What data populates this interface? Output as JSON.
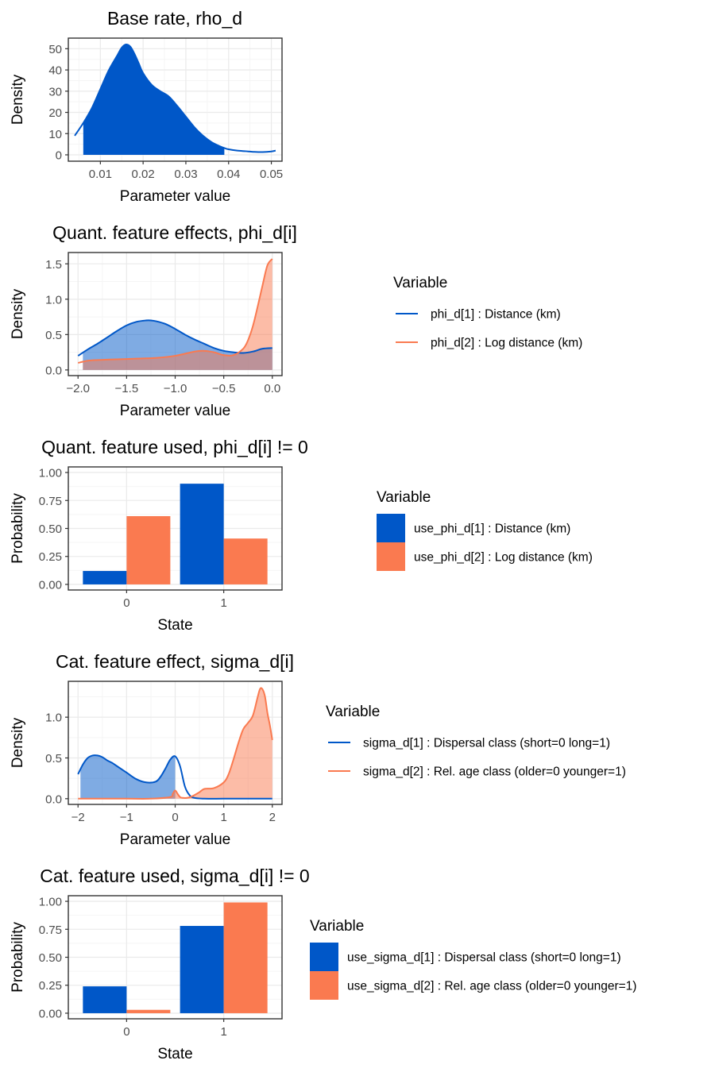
{
  "colors": {
    "series1": "#0057c8",
    "series2": "#fa7a50",
    "grid_major": "#ebebeb",
    "grid_minor": "#f5f5f5",
    "axis": "#333333",
    "text": "#000000",
    "tick_text": "#4d4d4d"
  },
  "chart_data": [
    {
      "id": "rho",
      "type": "area",
      "title": "Base rate, rho_d",
      "xlabel": "Parameter value",
      "ylabel": "Density",
      "xlim": [
        0.0025,
        0.0525
      ],
      "ylim": [
        -3,
        55
      ],
      "xticks": [
        0.01,
        0.02,
        0.03,
        0.04,
        0.05
      ],
      "xtick_labels": [
        "0.01",
        "0.02",
        "0.03",
        "0.04",
        "0.05"
      ],
      "yticks": [
        0,
        10,
        20,
        30,
        40,
        50
      ],
      "ytick_labels": [
        "0",
        "10",
        "20",
        "30",
        "40",
        "50"
      ],
      "series": [
        {
          "fill_range": [
            0.006,
            0.039
          ],
          "fill_opacity": 1,
          "x": [
            0.004,
            0.006,
            0.008,
            0.01,
            0.012,
            0.014,
            0.015,
            0.016,
            0.017,
            0.018,
            0.019,
            0.02,
            0.022,
            0.024,
            0.026,
            0.028,
            0.03,
            0.032,
            0.034,
            0.036,
            0.038,
            0.039,
            0.04,
            0.042,
            0.044,
            0.046,
            0.048,
            0.05,
            0.051
          ],
          "y": [
            9,
            15,
            22,
            31,
            40,
            47,
            50.5,
            52,
            51,
            47.5,
            43,
            38.5,
            33,
            30,
            27.5,
            23,
            18,
            13,
            9,
            6,
            4,
            3.2,
            2.6,
            2,
            1.7,
            1.4,
            1.3,
            1.6,
            2
          ]
        }
      ]
    },
    {
      "id": "phi",
      "type": "area",
      "title": "Quant. feature effects, phi_d[i]",
      "xlabel": "Parameter value",
      "ylabel": "Density",
      "xlim": [
        -2.1,
        0.1
      ],
      "ylim": [
        -0.08,
        1.66
      ],
      "xticks": [
        -2,
        -1.5,
        -1,
        -0.5,
        0
      ],
      "xtick_labels": [
        "−2.0",
        "−1.5",
        "−1.0",
        "−0.5",
        "0.0"
      ],
      "yticks": [
        0,
        0.5,
        1,
        1.5
      ],
      "ytick_labels": [
        "0.0",
        "0.5",
        "1.0",
        "1.5"
      ],
      "legend_title": "Variable",
      "legend_type": "line",
      "series": [
        {
          "name": "phi_d[1] : Distance (km)",
          "fill_range": [
            -1.95,
            0
          ],
          "fill_opacity": 0.5,
          "x": [
            -2,
            -1.9,
            -1.8,
            -1.7,
            -1.6,
            -1.5,
            -1.4,
            -1.3,
            -1.25,
            -1.2,
            -1.1,
            -1,
            -0.9,
            -0.8,
            -0.7,
            -0.6,
            -0.5,
            -0.4,
            -0.3,
            -0.2,
            -0.1,
            0
          ],
          "y": [
            0.2,
            0.29,
            0.37,
            0.46,
            0.55,
            0.63,
            0.68,
            0.7,
            0.7,
            0.69,
            0.65,
            0.58,
            0.5,
            0.43,
            0.37,
            0.31,
            0.27,
            0.25,
            0.24,
            0.26,
            0.3,
            0.31
          ]
        },
        {
          "name": "phi_d[2] : Log distance (km)",
          "fill_range": [
            -1.95,
            0
          ],
          "fill_opacity": 0.5,
          "x": [
            -2,
            -1.9,
            -1.8,
            -1.6,
            -1.4,
            -1.2,
            -1,
            -0.8,
            -0.7,
            -0.6,
            -0.5,
            -0.4,
            -0.3,
            -0.25,
            -0.2,
            -0.15,
            -0.1,
            -0.05,
            0
          ],
          "y": [
            0.1,
            0.13,
            0.14,
            0.15,
            0.16,
            0.17,
            0.2,
            0.26,
            0.27,
            0.25,
            0.21,
            0.21,
            0.3,
            0.42,
            0.62,
            0.9,
            1.2,
            1.48,
            1.57
          ]
        }
      ]
    },
    {
      "id": "usephi",
      "type": "bar",
      "title": "Quant. feature used, phi_d[i] != 0",
      "xlabel": "State",
      "ylabel": "Probability",
      "categories": [
        "0",
        "1"
      ],
      "ylim": [
        -0.05,
        1.05
      ],
      "yticks": [
        0,
        0.25,
        0.5,
        0.75,
        1
      ],
      "ytick_labels": [
        "0.00",
        "0.25",
        "0.50",
        "0.75",
        "1.00"
      ],
      "legend_title": "Variable",
      "legend_type": "box",
      "series": [
        {
          "name": "use_phi_d[1] : Distance (km)",
          "values": [
            0.12,
            0.9
          ]
        },
        {
          "name": "use_phi_d[2] : Log distance (km)",
          "values": [
            0.61,
            0.41
          ]
        }
      ]
    },
    {
      "id": "sigma",
      "type": "area",
      "title": "Cat. feature effect, sigma_d[i]",
      "xlabel": "Parameter value",
      "ylabel": "Density",
      "xlim": [
        -2.2,
        2.2
      ],
      "ylim": [
        -0.07,
        1.44
      ],
      "xticks": [
        -2,
        -1,
        0,
        1,
        2
      ],
      "xtick_labels": [
        "−2",
        "−1",
        "0",
        "1",
        "2"
      ],
      "yticks": [
        0,
        0.5,
        1
      ],
      "ytick_labels": [
        "0.0",
        "0.5",
        "1.0"
      ],
      "legend_title": "Variable",
      "legend_type": "line",
      "series": [
        {
          "name": "sigma_d[1] : Dispersal class (short=0 long=1)",
          "fill_range": [
            -1.95,
            0
          ],
          "fill_opacity": 0.5,
          "x": [
            -2,
            -1.9,
            -1.8,
            -1.7,
            -1.6,
            -1.5,
            -1.4,
            -1.3,
            -1.2,
            -1,
            -0.8,
            -0.6,
            -0.4,
            -0.3,
            -0.2,
            -0.1,
            0,
            0.1,
            0.2,
            0.3,
            0.4,
            0.6,
            1,
            1.5,
            2
          ],
          "y": [
            0.3,
            0.42,
            0.5,
            0.53,
            0.53,
            0.51,
            0.47,
            0.44,
            0.4,
            0.32,
            0.24,
            0.2,
            0.21,
            0.27,
            0.37,
            0.48,
            0.52,
            0.4,
            0.15,
            0.04,
            0.01,
            0,
            0,
            0,
            0
          ]
        },
        {
          "name": "sigma_d[2] : Rel. age class (older=0 younger=1)",
          "fill_range": [
            -1.95,
            2
          ],
          "fill_opacity": 0.5,
          "x": [
            -2,
            -1.5,
            -1,
            -0.5,
            -0.1,
            -0.05,
            0,
            0.05,
            0.1,
            0.15,
            0.25,
            0.35,
            0.5,
            0.6,
            0.8,
            1,
            1.1,
            1.2,
            1.3,
            1.4,
            1.5,
            1.6,
            1.7,
            1.75,
            1.8,
            1.85,
            1.9,
            1.95,
            2
          ],
          "y": [
            0,
            0,
            0,
            0,
            0.02,
            0.06,
            0.1,
            0.06,
            0.02,
            0.01,
            0.01,
            0.03,
            0.08,
            0.12,
            0.13,
            0.2,
            0.3,
            0.48,
            0.68,
            0.85,
            0.93,
            1.02,
            1.25,
            1.35,
            1.34,
            1.25,
            1.05,
            0.9,
            0.72
          ]
        }
      ]
    },
    {
      "id": "usesigma",
      "type": "bar",
      "title": "Cat. feature used, sigma_d[i] != 0",
      "xlabel": "State",
      "ylabel": "Probability",
      "categories": [
        "0",
        "1"
      ],
      "ylim": [
        -0.05,
        1.05
      ],
      "yticks": [
        0,
        0.25,
        0.5,
        0.75,
        1
      ],
      "ytick_labels": [
        "0.00",
        "0.25",
        "0.50",
        "0.75",
        "1.00"
      ],
      "legend_title": "Variable",
      "legend_type": "box",
      "series": [
        {
          "name": "use_sigma_d[1] : Dispersal class (short=0 long=1)",
          "values": [
            0.24,
            0.78
          ]
        },
        {
          "name": "use_sigma_d[2] : Rel. age class (older=0 younger=1)",
          "values": [
            0.03,
            0.99
          ]
        }
      ]
    }
  ]
}
